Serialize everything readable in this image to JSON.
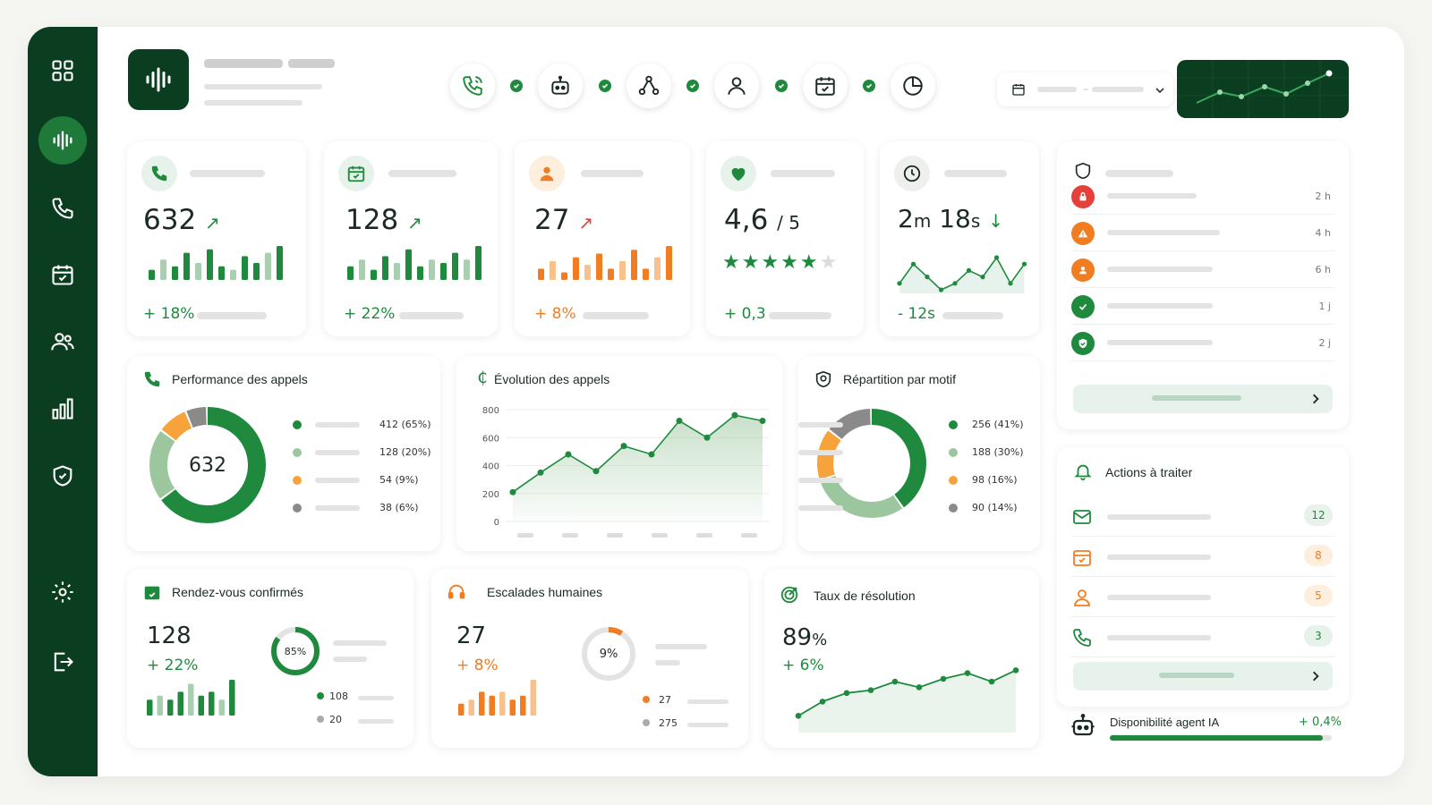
{
  "colors": {
    "brand_dark": "#0b3d20",
    "green": "#1f8a3d",
    "light_green": "#9cc79e",
    "orange": "#f07d22",
    "red": "#e5413a",
    "gray": "#bdbdbd"
  },
  "sidebar": {
    "items": [
      {
        "icon": "grid-icon"
      },
      {
        "icon": "waveform-icon",
        "active": true
      },
      {
        "icon": "phone-icon"
      },
      {
        "icon": "calendar-icon"
      },
      {
        "icon": "users-icon"
      },
      {
        "icon": "bar-chart-icon"
      },
      {
        "icon": "shield-icon"
      },
      {
        "icon": "settings-icon"
      },
      {
        "icon": "logout-icon"
      }
    ]
  },
  "header": {
    "steps": [
      "phone-icon",
      "robot-icon",
      "network-icon",
      "user-icon",
      "calendar-icon",
      "clock-icon"
    ]
  },
  "kpis": [
    {
      "value": "632",
      "trend": "↗",
      "delta": "+ 18%",
      "color": "green",
      "icon": "phone-icon",
      "bars": [
        3,
        6,
        4,
        8,
        5,
        9,
        4,
        3,
        7,
        5,
        8,
        10
      ]
    },
    {
      "value": "128",
      "trend": "↗",
      "delta": "+ 22%",
      "color": "green",
      "icon": "calendar-check-icon",
      "bars": [
        4,
        6,
        3,
        7,
        5,
        9,
        4,
        6,
        5,
        8,
        6,
        10
      ]
    },
    {
      "value": "27",
      "trend": "↗",
      "delta": "+ 8%",
      "color": "orange",
      "icon": "user-icon",
      "bars": [
        3,
        5,
        2,
        6,
        4,
        7,
        3,
        5,
        8,
        3,
        6,
        9
      ]
    },
    {
      "value": "4,6",
      "suffix": "/ 5",
      "delta": "+ 0,3",
      "color": "green",
      "icon": "heart-icon",
      "stars": 5
    },
    {
      "value_main": "2",
      "unit_m": "m",
      "value_sec": "18",
      "unit_s": "s",
      "trend": "↓",
      "delta": "- 12s",
      "color": "green",
      "icon": "clock-icon",
      "line": [
        6,
        9,
        7,
        5,
        6,
        8,
        7,
        10,
        6,
        9
      ]
    }
  ],
  "alerts": {
    "items": [
      {
        "icon": "lock-icon",
        "color": "#e5413a",
        "time": "2 h"
      },
      {
        "icon": "warning-icon",
        "color": "#f07d22",
        "time": "4 h"
      },
      {
        "icon": "user-icon",
        "color": "#f07d22",
        "time": "6 h"
      },
      {
        "icon": "check-icon",
        "color": "#1f8a3d",
        "time": "1 j"
      },
      {
        "icon": "shield-check-icon",
        "color": "#1f8a3d",
        "time": "2 j"
      }
    ]
  },
  "perf": {
    "title": "Performance des appels",
    "center": "632",
    "legend": [
      {
        "label": "412 (65%)",
        "color": "#1f8a3d"
      },
      {
        "label": "128 (20%)",
        "color": "#9cc79e"
      },
      {
        "label": "54 (9%)",
        "color": "#f5a33a"
      },
      {
        "label": "38 (6%)",
        "color": "#8a8a8a"
      }
    ]
  },
  "chart_data": {
    "type": "area",
    "title": "Évolution des appels",
    "x": [
      1,
      2,
      3,
      4,
      5,
      6,
      7,
      8,
      9,
      10
    ],
    "values": [
      210,
      350,
      480,
      360,
      540,
      480,
      720,
      600,
      760,
      720
    ],
    "yticks": [
      "800",
      "600",
      "400",
      "200",
      "0"
    ],
    "ylim": [
      0,
      800
    ]
  },
  "repartition": {
    "title": "Répartition par motif",
    "legend": [
      {
        "label": "256 (41%)",
        "color": "#1f8a3d"
      },
      {
        "label": "188 (30%)",
        "color": "#9cc79e"
      },
      {
        "label": "98 (16%)",
        "color": "#f5a33a"
      },
      {
        "label": "90 (14%)",
        "color": "#8a8a8a"
      }
    ]
  },
  "rdv": {
    "title": "Rendez-vous confirmés",
    "value": "128",
    "delta": "+ 22%",
    "ring": "85%",
    "legend": [
      "108",
      "20"
    ]
  },
  "escalades": {
    "title": "Escalades humaines",
    "value": "27",
    "delta": "+ 8%",
    "ring": "9%",
    "legend": [
      "27",
      "275"
    ]
  },
  "resolution": {
    "title": "Taux de résolution",
    "value": "89",
    "unit": "%",
    "delta": "+ 6%"
  },
  "actions": {
    "title": "Actions à traiter",
    "items": [
      {
        "icon": "mail-icon",
        "count": "12",
        "color": "green"
      },
      {
        "icon": "calendar-icon",
        "count": "8",
        "color": "orange"
      },
      {
        "icon": "user-icon",
        "count": "5",
        "color": "orange"
      },
      {
        "icon": "phone-icon",
        "count": "3",
        "color": "green"
      }
    ]
  },
  "ai": {
    "label": "Disponibilité agent IA",
    "delta": "+ 0,4%",
    "level": 0.96
  }
}
